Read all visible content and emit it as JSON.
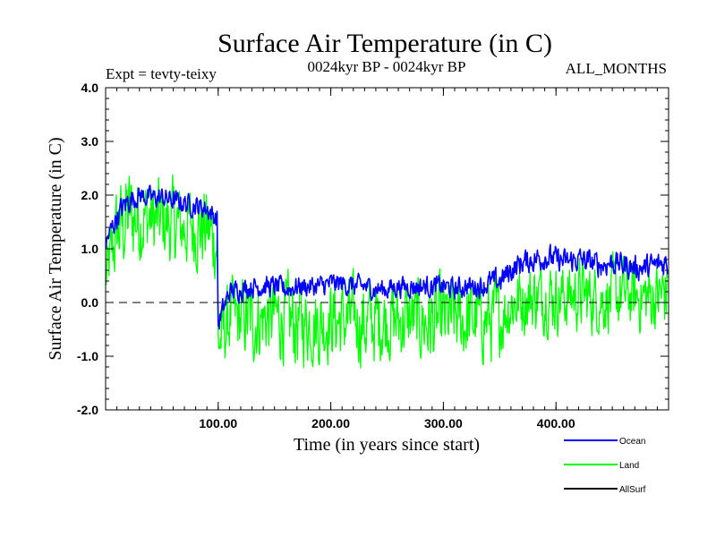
{
  "chart_data": {
    "type": "line",
    "title": "Surface Air Temperature (in C)",
    "subtitle": "0024kyr BP - 0024kyr BP",
    "left_note": "Expt = tevty-teixy",
    "right_note": "ALL_MONTHS",
    "xlabel": "Time (in years since start)",
    "ylabel": "Surface Air Temperature (in C)",
    "xlim": [
      0,
      500
    ],
    "ylim": [
      -2.0,
      4.0
    ],
    "xticks": [
      100,
      200,
      300,
      400
    ],
    "xtick_labels": [
      "100.00",
      "200.00",
      "300.00",
      "400.00"
    ],
    "yticks": [
      -2.0,
      -1.0,
      0.0,
      1.0,
      2.0,
      3.0,
      4.0
    ],
    "ytick_labels": [
      "-2.0",
      "-1.0",
      "0.0",
      "1.0",
      "2.0",
      "3.0",
      "4.0"
    ],
    "zero_line": {
      "y": 0.0,
      "style": "dashed"
    },
    "legend_placement": "bottom-right",
    "series": [
      {
        "name": "Land",
        "color": "#00ff00",
        "x": [
          0,
          10,
          20,
          30,
          40,
          50,
          60,
          70,
          80,
          90,
          99,
          100,
          110,
          120,
          130,
          140,
          150,
          160,
          170,
          180,
          190,
          200,
          210,
          220,
          230,
          240,
          250,
          260,
          270,
          280,
          290,
          300,
          310,
          320,
          330,
          340,
          350,
          360,
          370,
          380,
          390,
          400,
          410,
          420,
          430,
          440,
          450,
          460,
          470,
          480,
          490,
          499
        ],
        "mean": [
          0.4,
          1.3,
          1.6,
          1.6,
          1.55,
          1.5,
          1.45,
          1.4,
          1.45,
          1.35,
          1.1,
          -0.8,
          -0.3,
          -0.3,
          -0.35,
          -0.3,
          -0.25,
          -0.35,
          -0.4,
          -0.35,
          -0.4,
          -0.3,
          -0.35,
          -0.3,
          -0.4,
          -0.35,
          -0.3,
          -0.35,
          -0.3,
          -0.35,
          -0.4,
          -0.35,
          -0.3,
          -0.35,
          -0.3,
          -0.35,
          -0.3,
          0.0,
          0.05,
          0.1,
          0.15,
          0.1,
          0.1,
          0.15,
          0.1,
          0.05,
          0.1,
          0.15,
          0.1,
          0.1,
          0.1,
          0.2
        ],
        "amplitude": [
          0.8,
          1.3,
          1.5,
          1.3,
          1.2,
          1.2,
          1.2,
          1.1,
          1.2,
          1.3,
          1.1,
          0.9,
          1.1,
          1.1,
          1.2,
          1.1,
          1.1,
          1.2,
          1.3,
          1.1,
          1.2,
          1.1,
          1.2,
          1.1,
          1.3,
          1.2,
          1.1,
          1.2,
          1.1,
          1.2,
          1.3,
          1.2,
          1.1,
          1.2,
          1.1,
          1.2,
          1.1,
          1.0,
          1.0,
          1.0,
          1.0,
          1.0,
          0.9,
          1.0,
          1.0,
          0.9,
          1.0,
          1.0,
          0.9,
          1.0,
          1.0,
          1.1
        ]
      },
      {
        "name": "Ocean",
        "color": "#0000ff",
        "x": [
          0,
          10,
          20,
          30,
          40,
          50,
          60,
          70,
          80,
          90,
          99,
          100,
          110,
          120,
          130,
          140,
          150,
          160,
          170,
          180,
          190,
          200,
          210,
          220,
          230,
          240,
          250,
          260,
          270,
          280,
          290,
          300,
          310,
          320,
          330,
          340,
          350,
          360,
          370,
          380,
          390,
          400,
          410,
          420,
          430,
          440,
          450,
          460,
          470,
          480,
          490,
          499
        ],
        "mean": [
          1.1,
          1.6,
          1.9,
          2.0,
          1.95,
          1.95,
          1.9,
          1.85,
          1.8,
          1.75,
          1.55,
          -0.4,
          0.2,
          0.25,
          0.3,
          0.3,
          0.3,
          0.25,
          0.3,
          0.3,
          0.3,
          0.35,
          0.35,
          0.3,
          0.3,
          0.25,
          0.25,
          0.3,
          0.3,
          0.3,
          0.3,
          0.3,
          0.25,
          0.3,
          0.3,
          0.35,
          0.4,
          0.6,
          0.75,
          0.8,
          0.85,
          0.8,
          0.75,
          0.8,
          0.75,
          0.7,
          0.75,
          0.7,
          0.65,
          0.65,
          0.7,
          0.75
        ],
        "amplitude": [
          0.3,
          0.35,
          0.35,
          0.3,
          0.3,
          0.3,
          0.3,
          0.3,
          0.3,
          0.3,
          0.3,
          0.35,
          0.3,
          0.3,
          0.3,
          0.3,
          0.3,
          0.3,
          0.3,
          0.3,
          0.3,
          0.3,
          0.3,
          0.3,
          0.3,
          0.3,
          0.3,
          0.3,
          0.3,
          0.3,
          0.3,
          0.3,
          0.3,
          0.3,
          0.3,
          0.35,
          0.35,
          0.35,
          0.35,
          0.35,
          0.35,
          0.35,
          0.35,
          0.35,
          0.35,
          0.35,
          0.35,
          0.35,
          0.35,
          0.35,
          0.35,
          0.4
        ]
      },
      {
        "name": "AllSurf",
        "color": "#000000",
        "x": [],
        "mean": [],
        "amplitude": []
      }
    ]
  }
}
